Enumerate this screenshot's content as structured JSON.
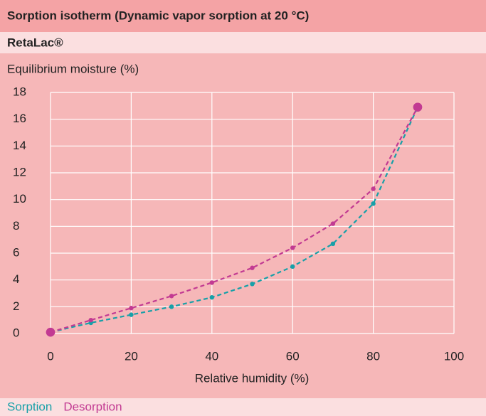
{
  "chart_data": {
    "type": "line",
    "title": "Sorption isotherm (Dynamic vapor sorption at 20 °C)",
    "subtitle": "RetaLac®",
    "y_label": "Equilibrium moisture (%)",
    "x_label": "Relative humidity (%)",
    "x": [
      0,
      10,
      20,
      30,
      40,
      50,
      60,
      70,
      80,
      91
    ],
    "series": [
      {
        "name": "Sorption",
        "color": "#17a0a8",
        "values": [
          0.1,
          0.8,
          1.4,
          2.0,
          2.7,
          3.7,
          5.0,
          6.7,
          9.7,
          16.9
        ]
      },
      {
        "name": "Desorption",
        "color": "#c23a92",
        "values": [
          0.1,
          1.0,
          1.9,
          2.8,
          3.8,
          4.9,
          6.4,
          8.2,
          10.8,
          16.9
        ]
      }
    ],
    "xlim": [
      0,
      100
    ],
    "xticks": [
      0,
      20,
      40,
      60,
      80,
      100
    ],
    "ylim": [
      0,
      18
    ],
    "yticks": [
      0,
      2,
      4,
      6,
      8,
      10,
      12,
      14,
      16,
      18
    ],
    "grid": true
  }
}
